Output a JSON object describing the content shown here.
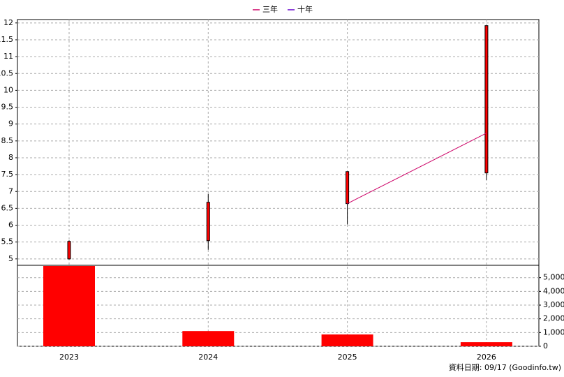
{
  "chart_data": {
    "type": "candlestick",
    "categories": [
      "2023",
      "2024",
      "2025",
      "2026"
    ],
    "open": [
      5.0,
      5.54,
      6.64,
      7.55
    ],
    "high": [
      5.55,
      6.93,
      7.6,
      11.92
    ],
    "low": [
      4.98,
      5.27,
      6.02,
      7.34
    ],
    "close": [
      5.52,
      6.68,
      7.59,
      11.92
    ],
    "candle_color": "#ff0000",
    "lines": [
      {
        "name": "三年",
        "color": "#cc0066",
        "values": [
          null,
          null,
          6.64,
          8.73
        ]
      },
      {
        "name": "十年",
        "color": "#6600cc",
        "values": [
          null,
          null,
          null,
          null
        ]
      }
    ],
    "ylim": [
      4.81,
      12.1
    ],
    "yticks": [
      5,
      5.5,
      6,
      6.5,
      7,
      7.5,
      8,
      8.5,
      9,
      9.5,
      10,
      10.5,
      11,
      11.5,
      12
    ],
    "grid": true,
    "volume": {
      "values": [
        5850,
        1110,
        860,
        300
      ],
      "color": "#ff0000",
      "ylim": [
        0,
        5900
      ],
      "yticks": [
        0,
        {
          "value": 1000,
          "label": "1,000"
        },
        {
          "value": 2000,
          "label": "2,000"
        },
        {
          "value": 3000,
          "label": "3,000"
        },
        {
          "value": 4000,
          "label": "4,000"
        },
        {
          "value": 5000,
          "label": "5,000"
        }
      ]
    },
    "footer": "資料日期: 09/17  (Goodinfo.tw)"
  }
}
